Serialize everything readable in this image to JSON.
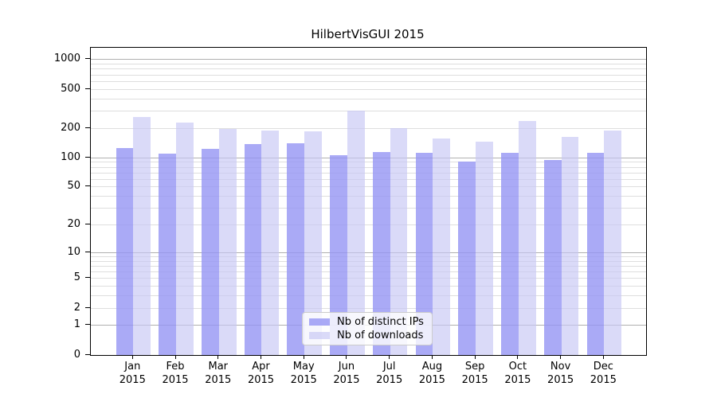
{
  "title": "HilbertVisGUI 2015",
  "chart_data": {
    "type": "bar",
    "title": "HilbertVisGUI 2015",
    "xlabel": "",
    "ylabel": "",
    "yscale": "log1p",
    "ylim": [
      0,
      1300
    ],
    "yticks": [
      0,
      1,
      2,
      5,
      10,
      20,
      50,
      100,
      200,
      500,
      1000
    ],
    "grid": {
      "major": [
        1,
        10,
        100,
        1000
      ],
      "minor": [
        2,
        3,
        4,
        5,
        6,
        7,
        8,
        9,
        20,
        30,
        40,
        50,
        60,
        70,
        80,
        90,
        200,
        300,
        400,
        500,
        600,
        700,
        800,
        900
      ],
      "major_color": "#b0b0b0",
      "minor_color": "#dedede"
    },
    "categories": [
      "Jan",
      "Feb",
      "Mar",
      "Apr",
      "May",
      "Jun",
      "Jul",
      "Aug",
      "Sep",
      "Oct",
      "Nov",
      "Dec"
    ],
    "year_label": "2015",
    "series": [
      {
        "name": "Nb of distinct IPs",
        "color": "#9595F4",
        "alpha": 0.8,
        "values": [
          126,
          110,
          124,
          137,
          141,
          106,
          115,
          113,
          91,
          113,
          95,
          113
        ]
      },
      {
        "name": "Nb of downloads",
        "color": "#C6C6F4",
        "alpha": 0.65,
        "values": [
          260,
          227,
          198,
          190,
          187,
          304,
          199,
          157,
          147,
          238,
          164,
          191
        ]
      }
    ],
    "legend_position": "lower center"
  }
}
